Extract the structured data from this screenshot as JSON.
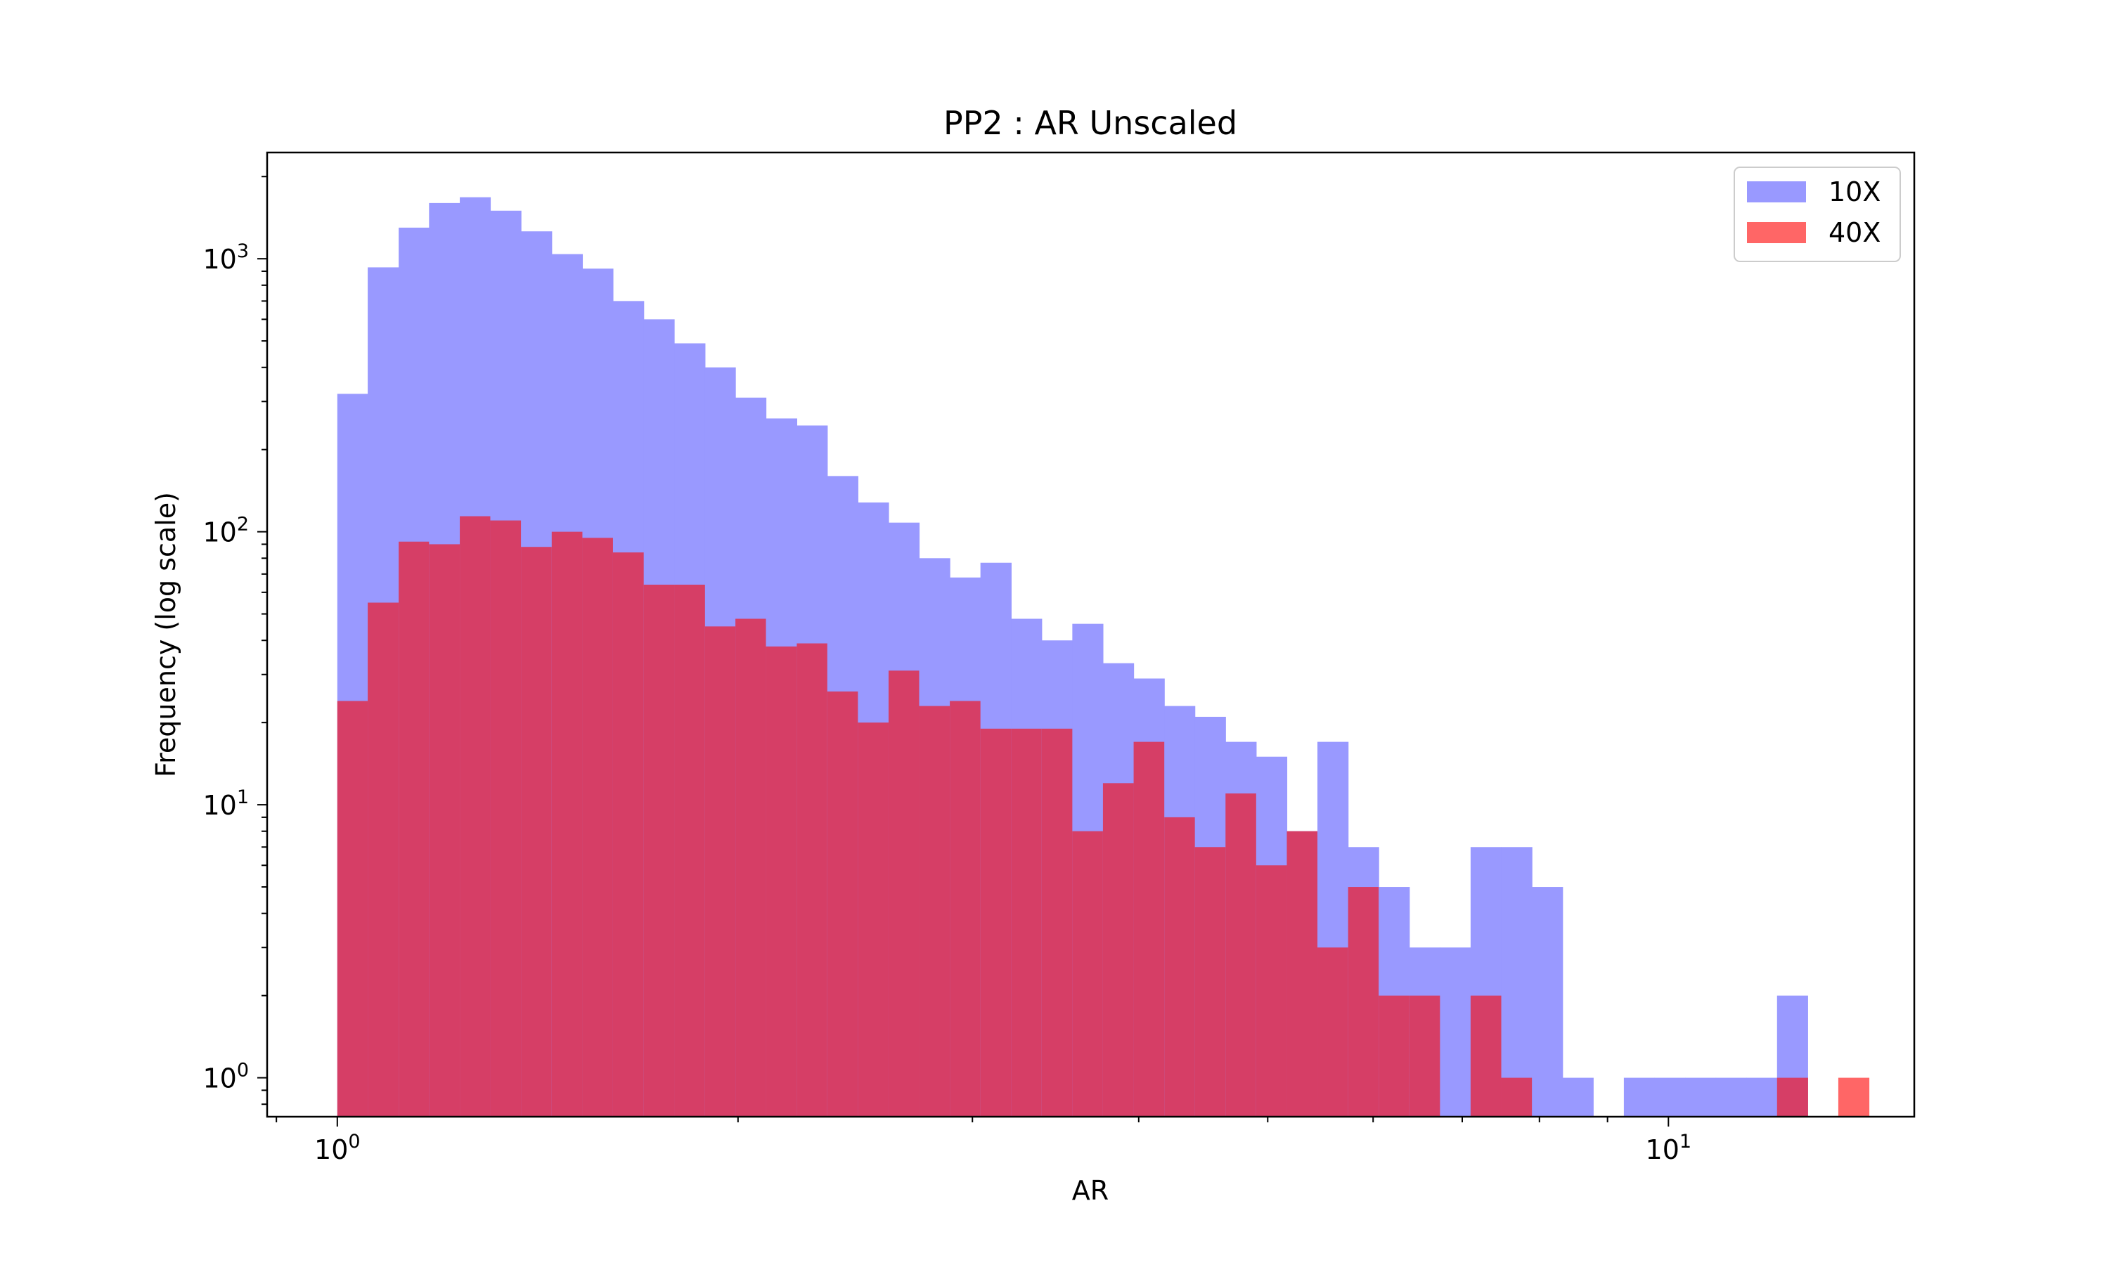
{
  "chart_data": {
    "type": "bar",
    "title": "PP2 : AR Unscaled",
    "xlabel": "AR",
    "ylabel": "Frequency (log scale)",
    "x_scale": "log",
    "y_scale": "log",
    "xlim": [
      0.8857,
      15.3
    ],
    "ylim": [
      0.72,
      2450
    ],
    "x_ticks": [
      {
        "value": 1,
        "base": "10",
        "exp": "0"
      },
      {
        "value": 10,
        "base": "10",
        "exp": "1"
      }
    ],
    "y_ticks": [
      {
        "value": 1,
        "base": "10",
        "exp": "0"
      },
      {
        "value": 10,
        "base": "10",
        "exp": "1"
      },
      {
        "value": 100,
        "base": "10",
        "exp": "2"
      },
      {
        "value": 1000,
        "base": "10",
        "exp": "3"
      }
    ],
    "legend_position": "top-right",
    "bin_edges": [
      1.0,
      1.054,
      1.112,
      1.172,
      1.236,
      1.303,
      1.374,
      1.449,
      1.528,
      1.611,
      1.699,
      1.791,
      1.889,
      1.991,
      2.099,
      2.214,
      2.334,
      2.461,
      2.595,
      2.736,
      2.885,
      3.042,
      3.208,
      3.382,
      3.566,
      3.76,
      3.965,
      4.181,
      4.408,
      4.648,
      4.901,
      5.168,
      5.449,
      5.746,
      6.058,
      6.388,
      6.736,
      7.102,
      7.489,
      7.897,
      8.327,
      8.78,
      9.258,
      9.762,
      10.293,
      10.853,
      11.444,
      12.067,
      12.723,
      13.416,
      14.146,
      14.916,
      15.727
    ],
    "series": [
      {
        "name": "10X",
        "color": "#9999ff",
        "values": [
          320,
          930,
          1300,
          1600,
          1680,
          1500,
          1260,
          1040,
          920,
          700,
          600,
          490,
          400,
          310,
          260,
          245,
          160,
          128,
          108,
          80,
          68,
          77,
          48,
          40,
          46,
          33,
          29,
          23,
          21,
          17,
          15,
          8,
          17,
          7,
          5,
          3,
          3,
          7,
          7,
          5,
          1,
          0,
          1,
          1,
          1,
          1,
          1,
          2,
          0,
          0,
          0,
          0
        ]
      },
      {
        "name": "40X",
        "color": "#ff6666",
        "values": [
          24,
          55,
          92,
          90,
          114,
          110,
          88,
          100,
          95,
          84,
          64,
          64,
          45,
          48,
          38,
          39,
          26,
          20,
          31,
          23,
          24,
          19,
          19,
          19,
          8,
          12,
          17,
          9,
          7,
          11,
          6,
          8,
          3,
          5,
          2,
          2,
          0,
          2,
          1,
          0,
          0,
          0,
          0,
          0,
          0,
          0,
          0,
          1,
          0,
          1,
          0,
          0
        ]
      }
    ],
    "overlap_color": "#d63e66"
  }
}
